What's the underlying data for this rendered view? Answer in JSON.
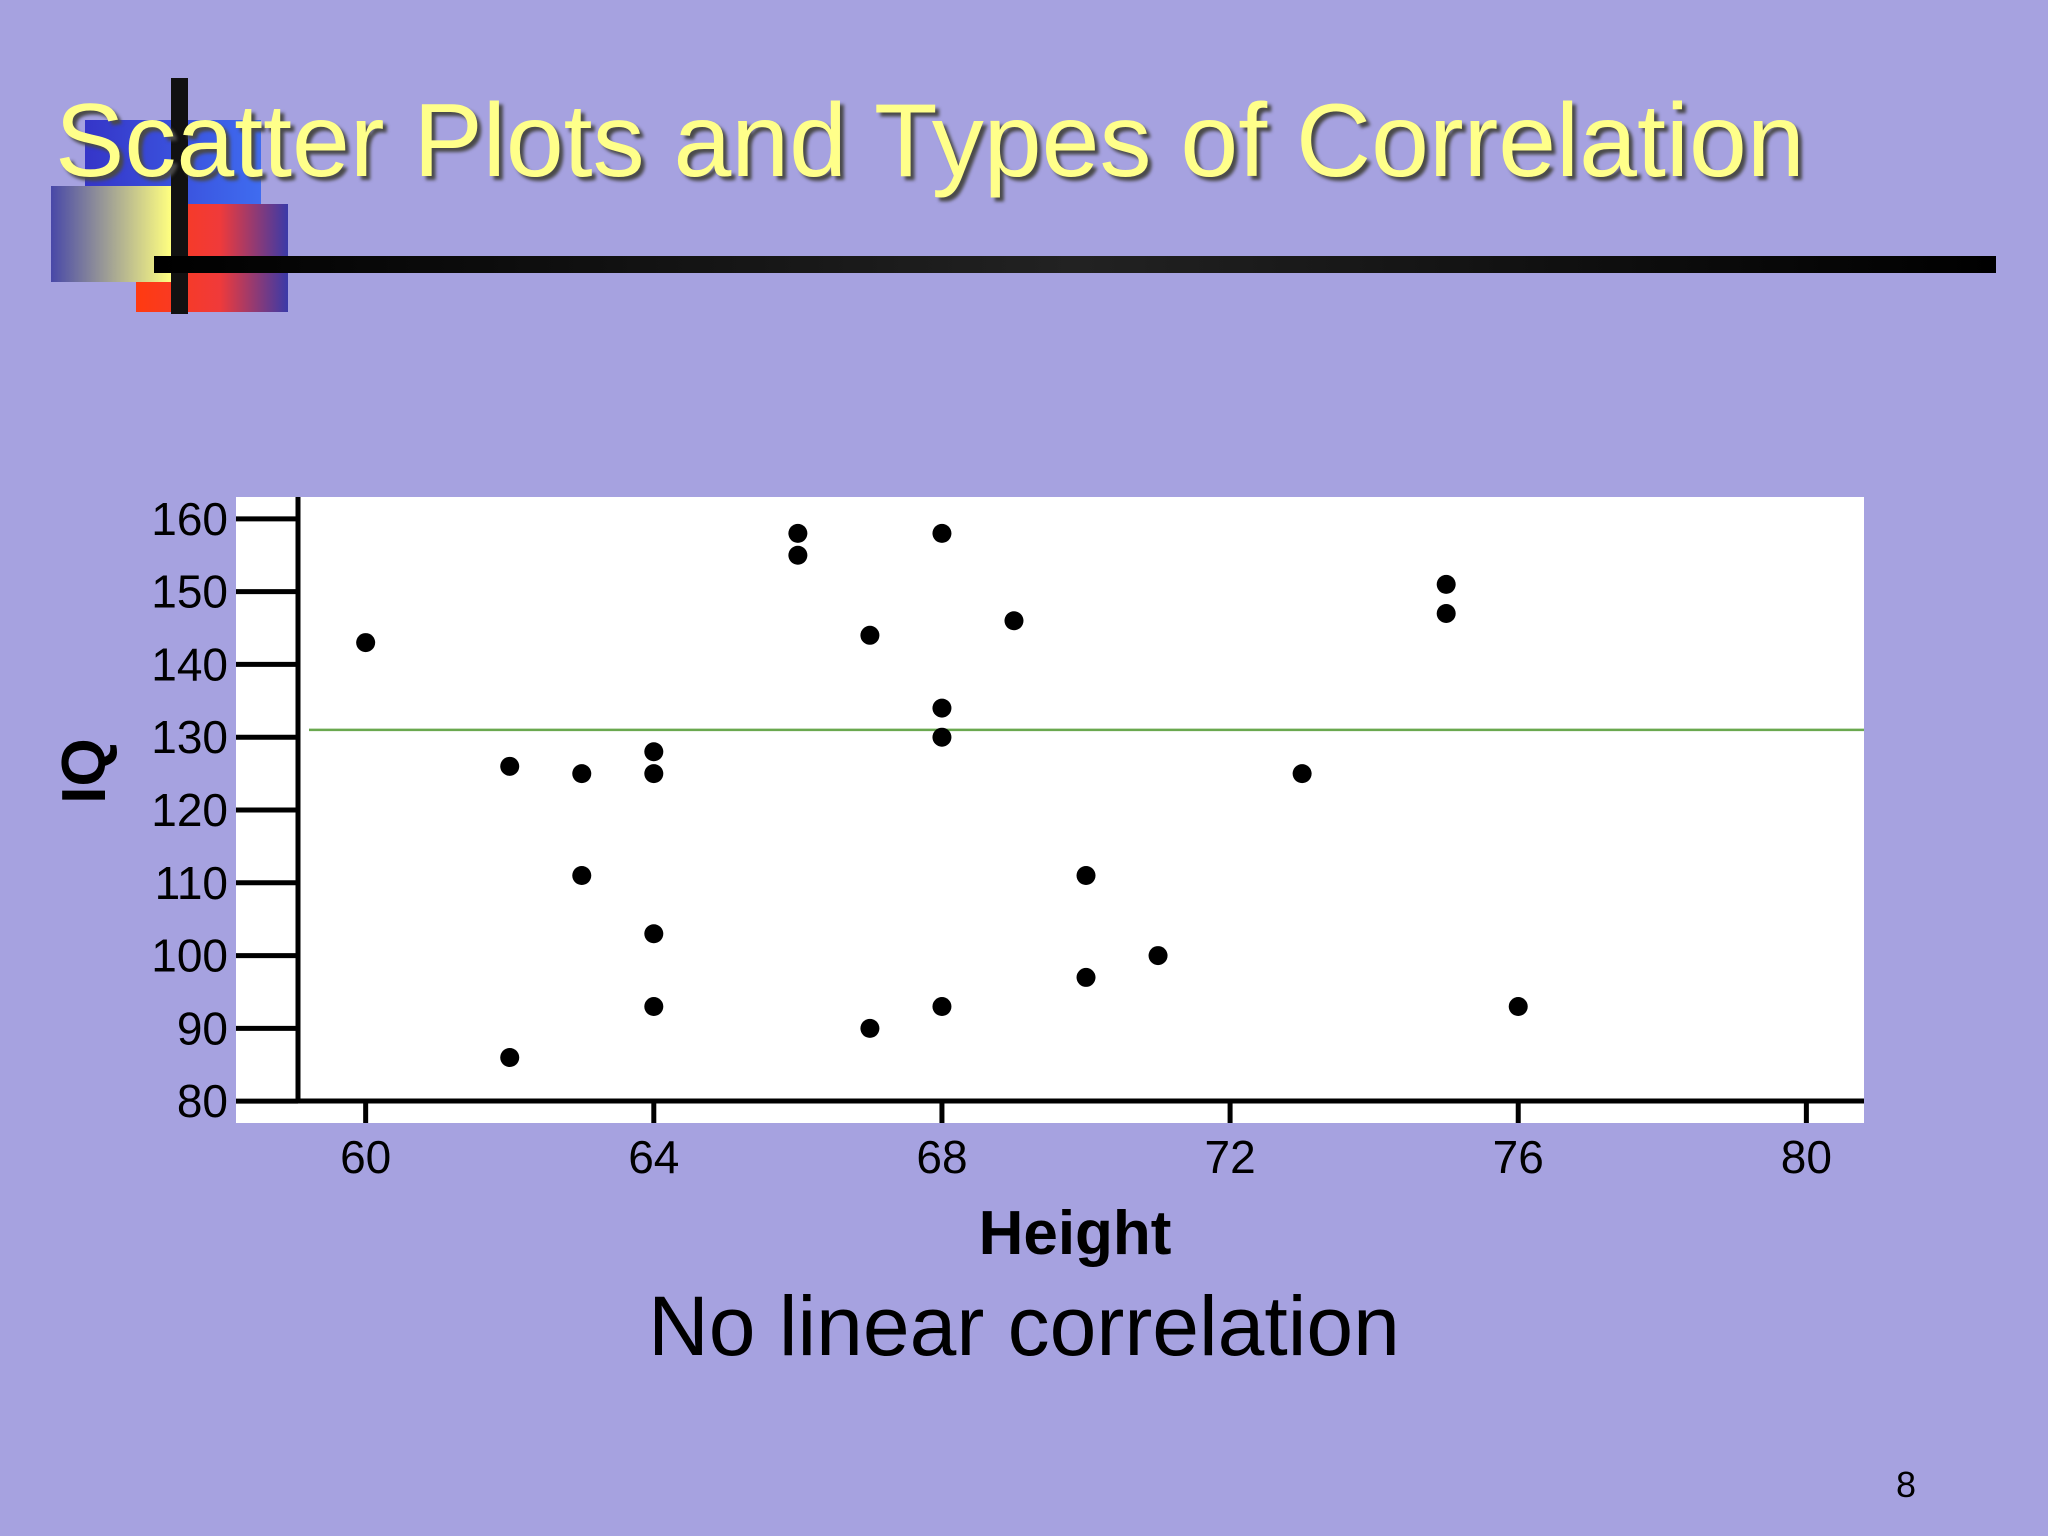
{
  "slide": {
    "title": "Scatter Plots and Types of Correlation",
    "caption": "No linear correlation",
    "page_number": "8"
  },
  "colors": {
    "background": "#a6a2e0",
    "title": "#ffff8a",
    "plot_area": "#ffffff",
    "reference_line": "#6aa84f",
    "points": "#000000"
  },
  "chart_data": {
    "type": "scatter",
    "title": "",
    "xlabel": "Height",
    "ylabel": "IQ",
    "xlim": [
      58.2,
      80.8
    ],
    "ylim": [
      77,
      163
    ],
    "xticks": [
      60,
      64,
      68,
      72,
      76,
      80
    ],
    "yticks": [
      80,
      90,
      100,
      110,
      120,
      130,
      140,
      150,
      160
    ],
    "grid": false,
    "legend": "none",
    "reference_line": {
      "orientation": "horizontal",
      "y": 131
    },
    "points": [
      {
        "x": 60,
        "y": 143
      },
      {
        "x": 62,
        "y": 126
      },
      {
        "x": 62,
        "y": 86
      },
      {
        "x": 63,
        "y": 125
      },
      {
        "x": 63,
        "y": 111
      },
      {
        "x": 64,
        "y": 128
      },
      {
        "x": 64,
        "y": 125
      },
      {
        "x": 64,
        "y": 103
      },
      {
        "x": 64,
        "y": 93
      },
      {
        "x": 66,
        "y": 158
      },
      {
        "x": 66,
        "y": 155
      },
      {
        "x": 67,
        "y": 144
      },
      {
        "x": 67,
        "y": 90
      },
      {
        "x": 68,
        "y": 158
      },
      {
        "x": 68,
        "y": 134
      },
      {
        "x": 68,
        "y": 130
      },
      {
        "x": 68,
        "y": 93
      },
      {
        "x": 69,
        "y": 146
      },
      {
        "x": 70,
        "y": 111
      },
      {
        "x": 70,
        "y": 97
      },
      {
        "x": 71,
        "y": 100
      },
      {
        "x": 73,
        "y": 125
      },
      {
        "x": 75,
        "y": 151
      },
      {
        "x": 75,
        "y": 147
      },
      {
        "x": 76,
        "y": 93
      }
    ]
  }
}
